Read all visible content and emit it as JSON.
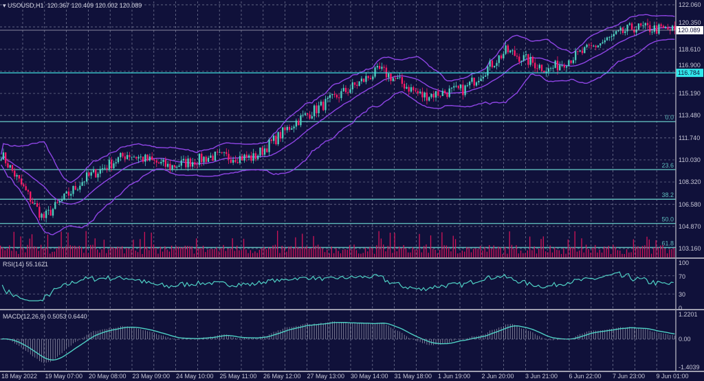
{
  "header": {
    "symbol": "USOUSD,H1",
    "open": "120.367",
    "high": "120.409",
    "low": "120.002",
    "close": "120.089"
  },
  "colors": {
    "background": "#10113a",
    "bull": "#4fd1c0",
    "bear": "#ff1a66",
    "bands": "#8f45e6",
    "fib": "#5fbcbc",
    "grid": "#7c819c",
    "volume": "#d01458",
    "indicator": "#4fd1c5"
  },
  "chart_data": {
    "type": "candlestick",
    "symbol": "USOUSD",
    "timeframe": "H1",
    "price_ticks": [
      "122.060",
      "120.350",
      "118.610",
      "116.900",
      "115.190",
      "113.480",
      "111.740",
      "110.030",
      "108.320",
      "106.580",
      "104.870",
      "103.160"
    ],
    "ylim": [
      103.16,
      122.06
    ],
    "current_price": "120.089",
    "marked_level": "116.784",
    "time_labels": [
      "18 May 2022",
      "19 May 07:00",
      "20 May 08:00",
      "23 May 09:00",
      "24 May 10:00",
      "25 May 11:00",
      "26 May 12:00",
      "27 May 13:00",
      "30 May 14:00",
      "31 May 18:00",
      "1 Jun 19:00",
      "2 Jun 20:00",
      "3 Jun 21:00",
      "6 Jun 22:00",
      "7 Jun 23:00",
      "9 Jun 01:00"
    ],
    "approx_close_at_labels": [
      110.5,
      105.5,
      108.6,
      110.5,
      109.5,
      110.3,
      110.2,
      113.0,
      115.0,
      117.0,
      115.0,
      115.5,
      118.5,
      117.0,
      118.7,
      120.3
    ],
    "last_close": 120.089,
    "overlays": [
      "Bollinger Bands",
      "Volumes"
    ],
    "fibonacci": [
      {
        "label": "0.0",
        "price": 113.0
      },
      {
        "label": "23.6",
        "price": 109.28
      },
      {
        "label": "38.2",
        "price": 106.98
      },
      {
        "label": "50.0",
        "price": 105.1
      },
      {
        "label": "61.8",
        "price": 103.24
      }
    ],
    "rsi": {
      "label": "RSI(14) 55.1621",
      "ticks": [
        "100",
        "70",
        "30",
        "0"
      ],
      "value": 55.1621
    },
    "macd": {
      "label": "MACD(12,26,9) 0.5053 0.6440",
      "ticks": [
        "1.2201",
        "0.00",
        "-1.4039"
      ],
      "main": 0.5053,
      "signal": 0.644
    }
  }
}
